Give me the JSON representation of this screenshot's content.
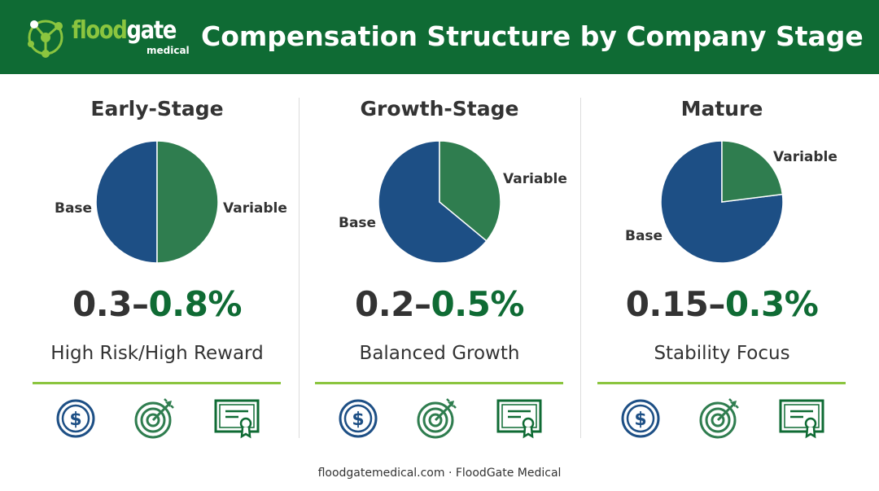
{
  "header": {
    "logo": {
      "word_part1": "flood",
      "word_part2": "gate",
      "sub": "medical"
    },
    "title": "Compensation Structure by Company Stage"
  },
  "colors": {
    "header_green": "#0f6b34",
    "accent_lime": "#8bc53f",
    "base_blue": "#1d4f85",
    "variable_green": "#2f7d4f",
    "text_dark": "#333333"
  },
  "chart_data": [
    {
      "type": "pie",
      "title": "Early-Stage",
      "categories": [
        "Base",
        "Variable"
      ],
      "values": [
        50,
        50
      ],
      "range": {
        "low": "0.3",
        "dash": "–",
        "high": "0.8%"
      },
      "tagline": "High Risk/High Reward"
    },
    {
      "type": "pie",
      "title": "Growth-Stage",
      "categories": [
        "Base",
        "Variable"
      ],
      "values": [
        64,
        36
      ],
      "range": {
        "low": "0.2",
        "dash": "–",
        "high": "0.5%"
      },
      "tagline": "Balanced Growth"
    },
    {
      "type": "pie",
      "title": "Mature",
      "categories": [
        "Base",
        "Variable"
      ],
      "values": [
        77,
        23
      ],
      "range": {
        "low": "0.15",
        "dash": "–",
        "high": "0.3%"
      },
      "tagline": "Stability Focus"
    }
  ],
  "icons": [
    "dollar-coin-icon",
    "target-arrow-icon",
    "certificate-icon"
  ],
  "footer": {
    "text": "floodgatemedical.com · FloodGate Medical"
  }
}
